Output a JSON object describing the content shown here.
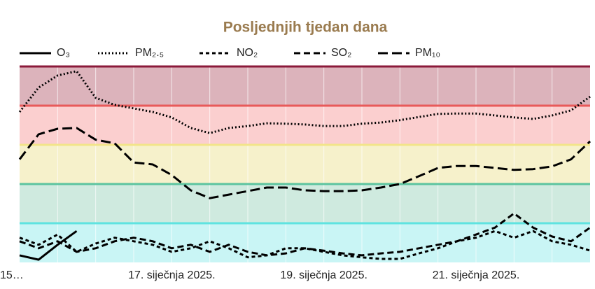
{
  "chart_data": {
    "type": "line",
    "title": "Posljednjih tjedan dana",
    "categories": [
      "15…",
      null,
      null,
      null,
      null,
      null,
      null,
      null,
      "17. siječnja 2025.",
      null,
      null,
      null,
      null,
      null,
      null,
      null,
      "19. siječnja 2025.",
      null,
      null,
      null,
      null,
      null,
      null,
      null,
      "21. siječnja 2025.",
      null,
      null,
      null,
      null,
      null,
      null
    ],
    "ylim": [
      0,
      5
    ],
    "bands": [
      {
        "from": 0,
        "to": 1,
        "color": "#c9f5f5",
        "edge": "#5fe3e0"
      },
      {
        "from": 1,
        "to": 2,
        "color": "#cfeadf",
        "edge": "#5cc49f"
      },
      {
        "from": 2,
        "to": 3,
        "color": "#f6f1cb",
        "edge": "#f2e48a"
      },
      {
        "from": 3,
        "to": 4,
        "color": "#fbcfcf",
        "edge": "#e85a5a"
      },
      {
        "from": 4,
        "to": 5,
        "color": "#dcb3bb",
        "edge": "#8b1a3a"
      }
    ],
    "series": [
      {
        "name": "O₃",
        "color": "#000000",
        "dash": "solid",
        "values": [
          0.18,
          0.07,
          0.45,
          0.8,
          null,
          null,
          null,
          null,
          null,
          null,
          null,
          null,
          null,
          null,
          null,
          null,
          null,
          null,
          null,
          null,
          null,
          null,
          null,
          null,
          null,
          null,
          null,
          null,
          null,
          null,
          null
        ]
      },
      {
        "name": "PM₂.₅",
        "color": "#000000",
        "dash": "dotted",
        "values": [
          3.84,
          4.46,
          4.77,
          4.88,
          4.2,
          4.02,
          3.93,
          3.84,
          3.7,
          3.43,
          3.3,
          3.43,
          3.48,
          3.55,
          3.54,
          3.52,
          3.48,
          3.48,
          3.54,
          3.57,
          3.63,
          3.71,
          3.79,
          3.8,
          3.8,
          3.75,
          3.7,
          3.66,
          3.75,
          3.88,
          4.23
        ]
      },
      {
        "name": "NO₂",
        "color": "#000000",
        "dash": "short",
        "values": [
          0.63,
          0.45,
          0.71,
          0.27,
          0.48,
          0.63,
          0.54,
          0.45,
          0.27,
          0.36,
          0.54,
          0.36,
          0.13,
          0.18,
          0.36,
          0.36,
          0.27,
          0.18,
          0.13,
          0.09,
          0.09,
          0.23,
          0.36,
          0.54,
          0.63,
          0.8,
          0.63,
          0.8,
          0.54,
          0.45,
          0.3
        ]
      },
      {
        "name": "SO₂",
        "color": "#000000",
        "dash": "medium",
        "values": [
          0.54,
          0.36,
          0.54,
          0.27,
          0.36,
          0.54,
          0.63,
          0.54,
          0.36,
          0.45,
          0.27,
          0.45,
          0.27,
          0.18,
          0.23,
          0.36,
          0.3,
          0.23,
          0.18,
          0.23,
          0.27,
          0.36,
          0.45,
          0.54,
          0.71,
          0.89,
          1.25,
          0.89,
          0.66,
          0.54,
          0.89
        ]
      },
      {
        "name": "PM₁₀",
        "color": "#000000",
        "dash": "long",
        "values": [
          2.63,
          3.27,
          3.41,
          3.43,
          3.13,
          3.04,
          2.55,
          2.5,
          2.23,
          1.84,
          1.64,
          1.73,
          1.82,
          1.91,
          1.91,
          1.84,
          1.82,
          1.82,
          1.84,
          1.91,
          2.0,
          2.2,
          2.41,
          2.46,
          2.46,
          2.41,
          2.36,
          2.38,
          2.45,
          2.63,
          3.09
        ]
      }
    ]
  }
}
